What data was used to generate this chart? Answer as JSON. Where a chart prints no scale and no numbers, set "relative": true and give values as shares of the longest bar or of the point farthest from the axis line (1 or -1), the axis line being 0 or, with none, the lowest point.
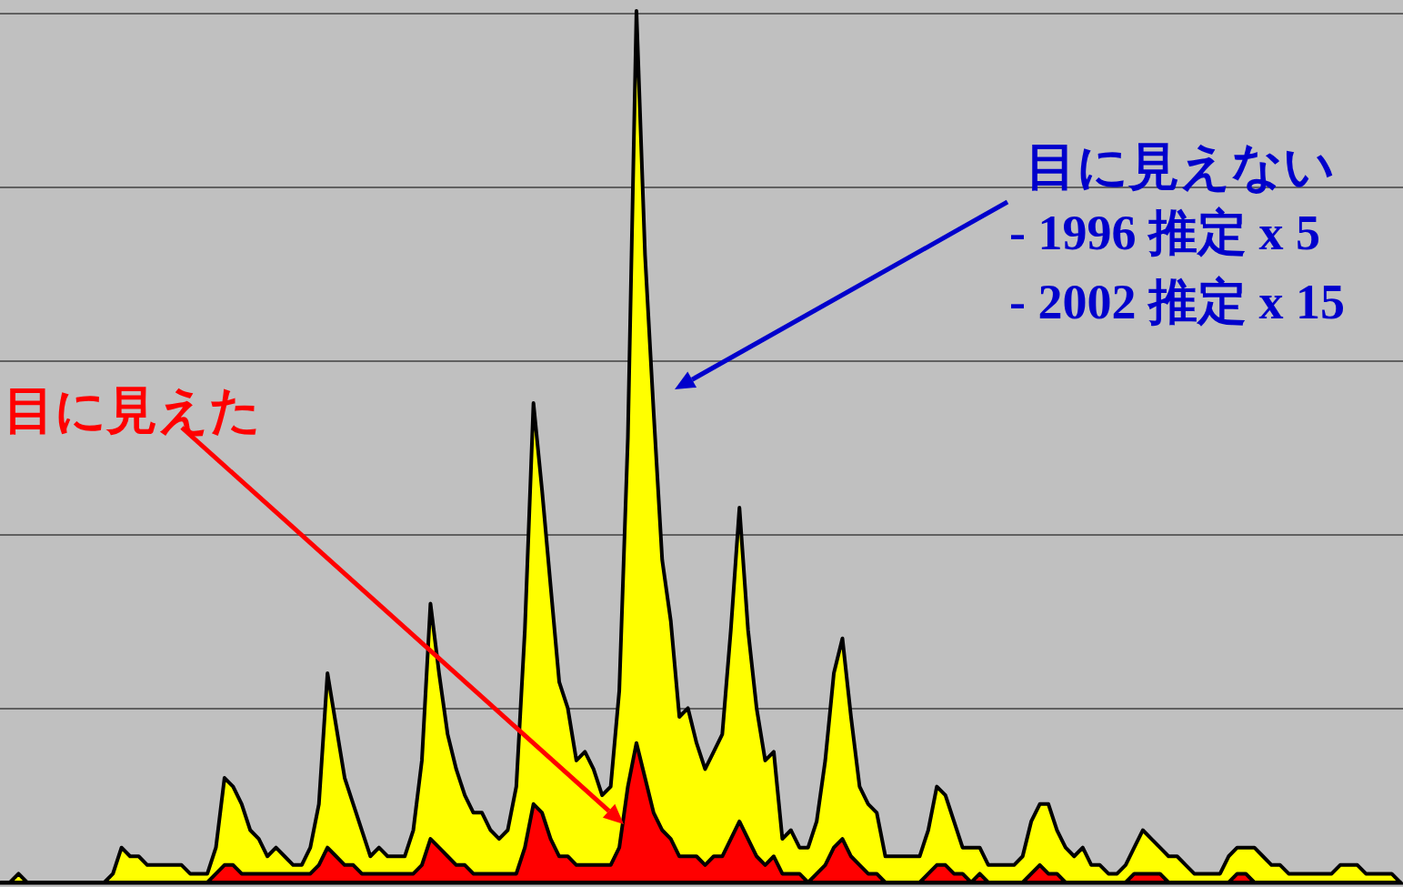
{
  "chart_data": {
    "type": "area",
    "relative": true,
    "grid": "y",
    "categories": [
      null,
      null,
      null,
      null,
      null,
      null,
      null,
      null,
      null,
      null,
      null,
      null,
      null,
      null,
      null,
      null,
      null,
      null,
      null,
      null,
      null,
      null,
      null,
      null,
      null,
      null,
      null,
      null,
      null,
      null,
      null,
      null,
      null,
      null,
      null,
      null,
      null,
      null,
      null,
      null,
      null,
      null,
      null,
      null,
      null,
      null,
      null,
      null,
      null,
      null,
      null,
      null,
      null,
      null,
      null,
      null,
      null,
      null,
      null,
      null,
      null,
      null,
      null,
      null,
      null,
      null,
      null,
      null,
      null,
      null,
      null,
      null,
      null,
      null,
      null,
      null,
      null,
      null,
      null,
      null,
      null,
      null,
      null,
      null,
      null,
      null,
      null,
      null,
      null,
      null,
      null,
      null,
      null,
      null,
      null,
      null,
      null,
      null,
      null,
      null,
      null,
      null,
      null,
      null,
      null,
      null,
      null,
      null,
      null,
      null,
      null,
      null,
      null,
      null,
      null,
      null,
      null,
      null,
      null,
      null,
      null,
      null,
      null,
      null,
      null,
      null,
      null,
      null,
      null,
      null,
      null,
      null,
      null,
      null,
      null,
      null,
      null,
      null,
      null,
      null,
      null,
      null,
      null,
      null,
      null,
      null,
      null,
      null,
      null,
      null,
      null,
      null,
      null,
      null,
      null,
      null,
      null,
      null,
      null,
      null,
      null,
      null,
      null,
      null
    ],
    "series": [
      {
        "color": "#ffff00",
        "values": [
          0,
          0,
          0.01,
          0,
          0,
          0,
          0,
          0,
          0,
          0,
          0,
          0,
          0,
          0.01,
          0.04,
          0.03,
          0.03,
          0.02,
          0.02,
          0.02,
          0.02,
          0.02,
          0.01,
          0.01,
          0.01,
          0.04,
          0.12,
          0.11,
          0.09,
          0.06,
          0.05,
          0.03,
          0.04,
          0.03,
          0.02,
          0.02,
          0.04,
          0.09,
          0.24,
          0.18,
          0.12,
          0.09,
          0.06,
          0.03,
          0.04,
          0.03,
          0.03,
          0.03,
          0.06,
          0.14,
          0.32,
          0.24,
          0.17,
          0.13,
          0.1,
          0.08,
          0.08,
          0.06,
          0.05,
          0.06,
          0.11,
          0.29,
          0.55,
          0.45,
          0.34,
          0.23,
          0.2,
          0.14,
          0.15,
          0.13,
          0.1,
          0.11,
          0.22,
          0.51,
          1.0,
          0.72,
          0.54,
          0.37,
          0.3,
          0.19,
          0.2,
          0.16,
          0.13,
          0.15,
          0.17,
          0.29,
          0.43,
          0.29,
          0.2,
          0.14,
          0.15,
          0.05,
          0.06,
          0.04,
          0.04,
          0.07,
          0.14,
          0.24,
          0.28,
          0.19,
          0.11,
          0.09,
          0.08,
          0.03,
          0.03,
          0.03,
          0.03,
          0.03,
          0.06,
          0.11,
          0.1,
          0.07,
          0.04,
          0.04,
          0.04,
          0.02,
          0.02,
          0.02,
          0.02,
          0.03,
          0.07,
          0.09,
          0.09,
          0.06,
          0.04,
          0.03,
          0.04,
          0.02,
          0.02,
          0.01,
          0.01,
          0.02,
          0.04,
          0.06,
          0.05,
          0.04,
          0.03,
          0.03,
          0.02,
          0.01,
          0.01,
          0.01,
          0.01,
          0.03,
          0.04,
          0.04,
          0.04,
          0.03,
          0.02,
          0.02,
          0.01,
          0.01,
          0.01,
          0.01,
          0.01,
          0.01,
          0.02,
          0.02,
          0.02,
          0.01,
          0.01,
          0.01,
          0.01,
          0
        ]
      },
      {
        "color": "#ff0000",
        "values": [
          0,
          0,
          0,
          0,
          0,
          0,
          0,
          0,
          0,
          0,
          0,
          0,
          0,
          0,
          0,
          0,
          0,
          0,
          0,
          0,
          0,
          0,
          0,
          0,
          0,
          0.01,
          0.02,
          0.02,
          0.01,
          0.01,
          0.01,
          0.01,
          0.01,
          0.01,
          0.01,
          0.01,
          0.01,
          0.02,
          0.04,
          0.03,
          0.02,
          0.02,
          0.01,
          0.01,
          0.01,
          0.01,
          0.01,
          0.01,
          0.01,
          0.02,
          0.05,
          0.04,
          0.03,
          0.02,
          0.02,
          0.01,
          0.01,
          0.01,
          0.01,
          0.01,
          0.01,
          0.04,
          0.09,
          0.08,
          0.05,
          0.03,
          0.03,
          0.02,
          0.02,
          0.02,
          0.02,
          0.02,
          0.04,
          0.11,
          0.16,
          0.12,
          0.08,
          0.06,
          0.05,
          0.03,
          0.03,
          0.03,
          0.02,
          0.03,
          0.03,
          0.05,
          0.07,
          0.05,
          0.03,
          0.02,
          0.03,
          0.01,
          0.01,
          0.01,
          0,
          0.01,
          0.02,
          0.04,
          0.05,
          0.03,
          0.02,
          0.01,
          0.01,
          0,
          0,
          0,
          0,
          0,
          0.01,
          0.02,
          0.02,
          0.01,
          0.01,
          0,
          0.01,
          0,
          0,
          0,
          0,
          0,
          0.01,
          0.02,
          0.01,
          0.01,
          0,
          0,
          0,
          0,
          0,
          0,
          0,
          0,
          0.01,
          0.01,
          0.01,
          0.01,
          0,
          0,
          0,
          0,
          0,
          0,
          0,
          0,
          0.01,
          0.01,
          0,
          0,
          0,
          0,
          0,
          0,
          0,
          0,
          0,
          0,
          0,
          0,
          0,
          0,
          0,
          0,
          0,
          0
        ]
      }
    ],
    "annotations": [
      "目に見えた",
      "目に見えない",
      "- 1996 推定 x 5",
      "- 2002 推定 x 15"
    ]
  }
}
